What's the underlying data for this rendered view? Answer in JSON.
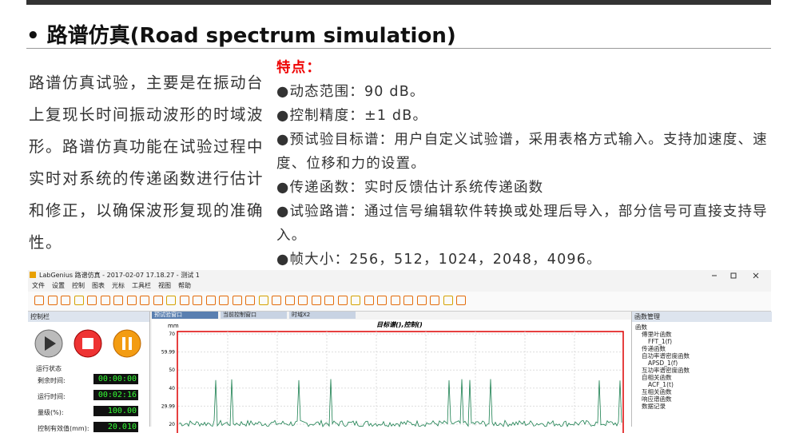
{
  "header": {
    "title": "• 路谱仿真(Road spectrum simulation)"
  },
  "intro": "路谱仿真试验，主要是在振动台上复现长时间振动波形的时域波形。路谱仿真功能在试验过程中实时对系统的传递函数进行估计和修正，以确保波形复现的准确性。",
  "features": {
    "title": "特点：",
    "items": [
      "●动态范围：90 dB。",
      "●控制精度：±1 dB。",
      "●预试验目标谱：用户自定义试验谱，采用表格方式输入。支持加速度、速度、位移和力的设置。",
      "●传递函数：实时反馈估计系统传递函数",
      "●试验路谱：通过信号编辑软件转换或处理后导入，部分信号可直接支持导入。",
      "●帧大小：256，512，1024，2048，4096。"
    ]
  },
  "app": {
    "window_title": "LabGenius 路谱仿真 - 2017-02-07 17.18.27 - 测试 1",
    "menu": [
      "文件",
      "设置",
      "控制",
      "图表",
      "光标",
      "工具栏",
      "视图",
      "帮助"
    ],
    "left_panel": {
      "title": "控制栏",
      "status_title": "运行状态",
      "rows": [
        {
          "label": "剩余时间:",
          "value": "00:00:00"
        },
        {
          "label": "运行时间:",
          "value": "00:02:16"
        },
        {
          "label": "量级(%):",
          "value": "100.00"
        },
        {
          "label": "控制有效值(mm):",
          "value": "20.010"
        }
      ]
    },
    "tabs": [
      "预试验窗口",
      "当前控制窗口",
      "时域X2"
    ],
    "plot": {
      "title": "目标谱(),控制()",
      "unit": "mm",
      "yticks": [
        "70",
        "59.99",
        "50",
        "40",
        "29.99",
        "20"
      ]
    },
    "right_panel": {
      "title": "函数管理",
      "tree": [
        "函数",
        "傅里叶函数",
        "FFT_1(f)",
        "传递函数",
        "自功率谱密度函数",
        "APSD_1(f)",
        "互功率谱密度函数",
        "自相关函数",
        "ACF_1(t)",
        "互相关函数",
        "响应谱函数",
        "数据记录"
      ]
    }
  }
}
